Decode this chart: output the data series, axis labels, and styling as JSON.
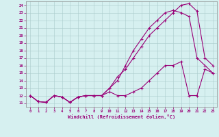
{
  "xlabel": "Windchill (Refroidissement éolien,°C)",
  "bg_color": "#d6f0f0",
  "line_color": "#990077",
  "xlim": [
    -0.5,
    23.5
  ],
  "ylim": [
    10.5,
    24.5
  ],
  "xticks": [
    0,
    1,
    2,
    3,
    4,
    5,
    6,
    7,
    8,
    9,
    10,
    11,
    12,
    13,
    14,
    15,
    16,
    17,
    18,
    19,
    20,
    21,
    22,
    23
  ],
  "yticks": [
    11,
    12,
    13,
    14,
    15,
    16,
    17,
    18,
    19,
    20,
    21,
    22,
    23,
    24
  ],
  "line1_x": [
    0,
    1,
    2,
    3,
    4,
    5,
    6,
    7,
    8,
    9,
    10,
    11,
    12,
    13,
    14,
    15,
    16,
    17,
    18,
    19,
    20,
    21,
    22,
    23
  ],
  "line1_y": [
    12,
    11.2,
    11.1,
    12,
    11.8,
    11.1,
    11.8,
    12,
    12,
    12,
    12.5,
    12,
    12,
    12.5,
    13,
    14,
    15,
    16,
    16,
    16.5,
    12,
    12,
    15.5,
    15
  ],
  "line2_x": [
    0,
    1,
    2,
    3,
    4,
    5,
    6,
    7,
    8,
    9,
    10,
    11,
    12,
    13,
    14,
    15,
    16,
    17,
    18,
    19,
    20,
    21,
    22,
    23
  ],
  "line2_y": [
    12,
    11.2,
    11.1,
    12,
    11.8,
    11.1,
    11.8,
    12,
    12,
    12,
    13,
    14,
    16,
    18,
    19.5,
    21,
    22,
    23,
    23.3,
    23,
    22.5,
    17,
    16,
    15
  ],
  "line3_x": [
    0,
    1,
    2,
    3,
    4,
    5,
    6,
    7,
    8,
    9,
    10,
    11,
    12,
    13,
    14,
    15,
    16,
    17,
    18,
    19,
    20,
    21,
    22,
    23
  ],
  "line3_y": [
    12,
    11.2,
    11.1,
    12,
    11.8,
    11.1,
    11.8,
    12,
    12,
    12,
    13,
    14.5,
    15.5,
    17,
    18.5,
    20,
    21,
    22,
    23,
    24,
    24.2,
    23.2,
    17,
    16
  ]
}
